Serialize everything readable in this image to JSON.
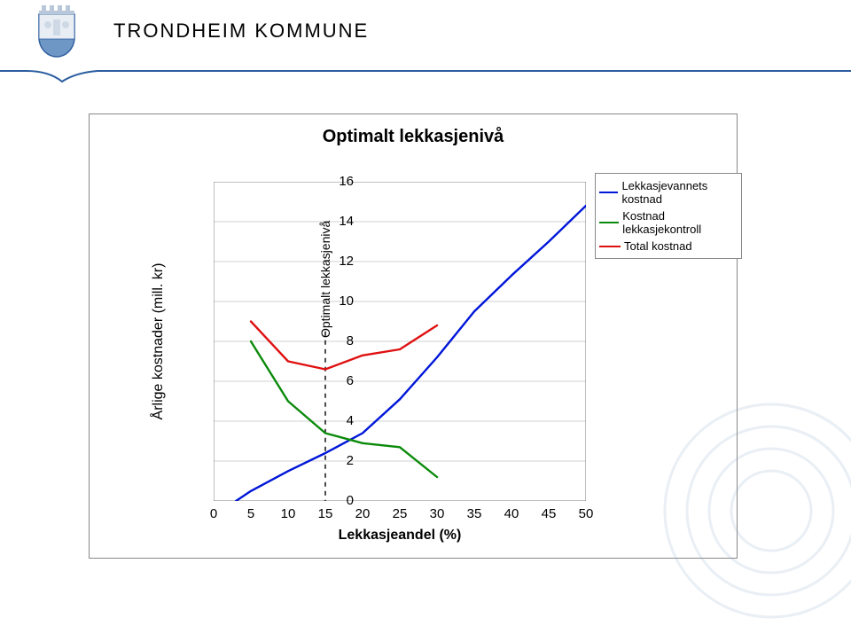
{
  "header": {
    "org_name": "TRONDHEIM KOMMUNE",
    "org_fontsize": 22,
    "crest_shield_fill": "#6f97c5",
    "crest_shield_stroke": "#2f5e9e",
    "crest_crown_fill": "#b8c7da",
    "rule_color": "#2b5da0",
    "rule_bulge_height": 12
  },
  "chart": {
    "title": "Optimalt lekkasjenivå",
    "title_fontsize": 20,
    "xlabel": "Lekkasjeandel (%)",
    "ylabel": "Årlige kostnader (mill. kr)",
    "inner_vertical_label": "Optimalt lekkasjenivå",
    "xlim": [
      0,
      50
    ],
    "ylim": [
      0,
      16
    ],
    "xtick_step": 5,
    "ytick_step": 2,
    "background_color": "#ffffff",
    "grid_color": "#c0c0c0",
    "axis_color": "#808080",
    "axis_width": 1,
    "grid_width": 0.7,
    "tick_fontsize": 15,
    "label_fontsize": 16,
    "line_width": 2.4,
    "optimal_x": 15,
    "optimal_line_color": "#000000",
    "optimal_line_dash": "5,5",
    "series": [
      {
        "name": "Lekkasjevannets kostnad",
        "color": "#0016d8",
        "x": [
          3,
          5,
          10,
          15,
          20,
          25,
          30,
          35,
          40,
          45,
          50
        ],
        "y": [
          0,
          0.5,
          1.5,
          2.4,
          3.4,
          5.1,
          7.2,
          9.5,
          11.3,
          13.0,
          14.8
        ]
      },
      {
        "name": "Kostnad lekkasjekontroll",
        "color": "#0a8a0a",
        "x": [
          5,
          10,
          15,
          20,
          25,
          30
        ],
        "y": [
          8.0,
          5.0,
          3.4,
          2.9,
          2.7,
          1.2
        ]
      },
      {
        "name": "Total kostnad",
        "color": "#e01010",
        "x": [
          5,
          10,
          15,
          20,
          25,
          30
        ],
        "y": [
          9.0,
          7.0,
          6.6,
          7.3,
          7.6,
          8.8
        ]
      }
    ]
  },
  "legend": {
    "border_color": "#888888",
    "bg": "#ffffff",
    "fontsize": 13,
    "items": [
      {
        "label": "Lekkasjevannets kostnad",
        "color": "#0016d8"
      },
      {
        "label": "Kostnad lekkasjekontroll",
        "color": "#0a8a0a"
      },
      {
        "label": "Total kostnad",
        "color": "#e01010"
      }
    ]
  },
  "swirl_color": "#8aa8c8"
}
